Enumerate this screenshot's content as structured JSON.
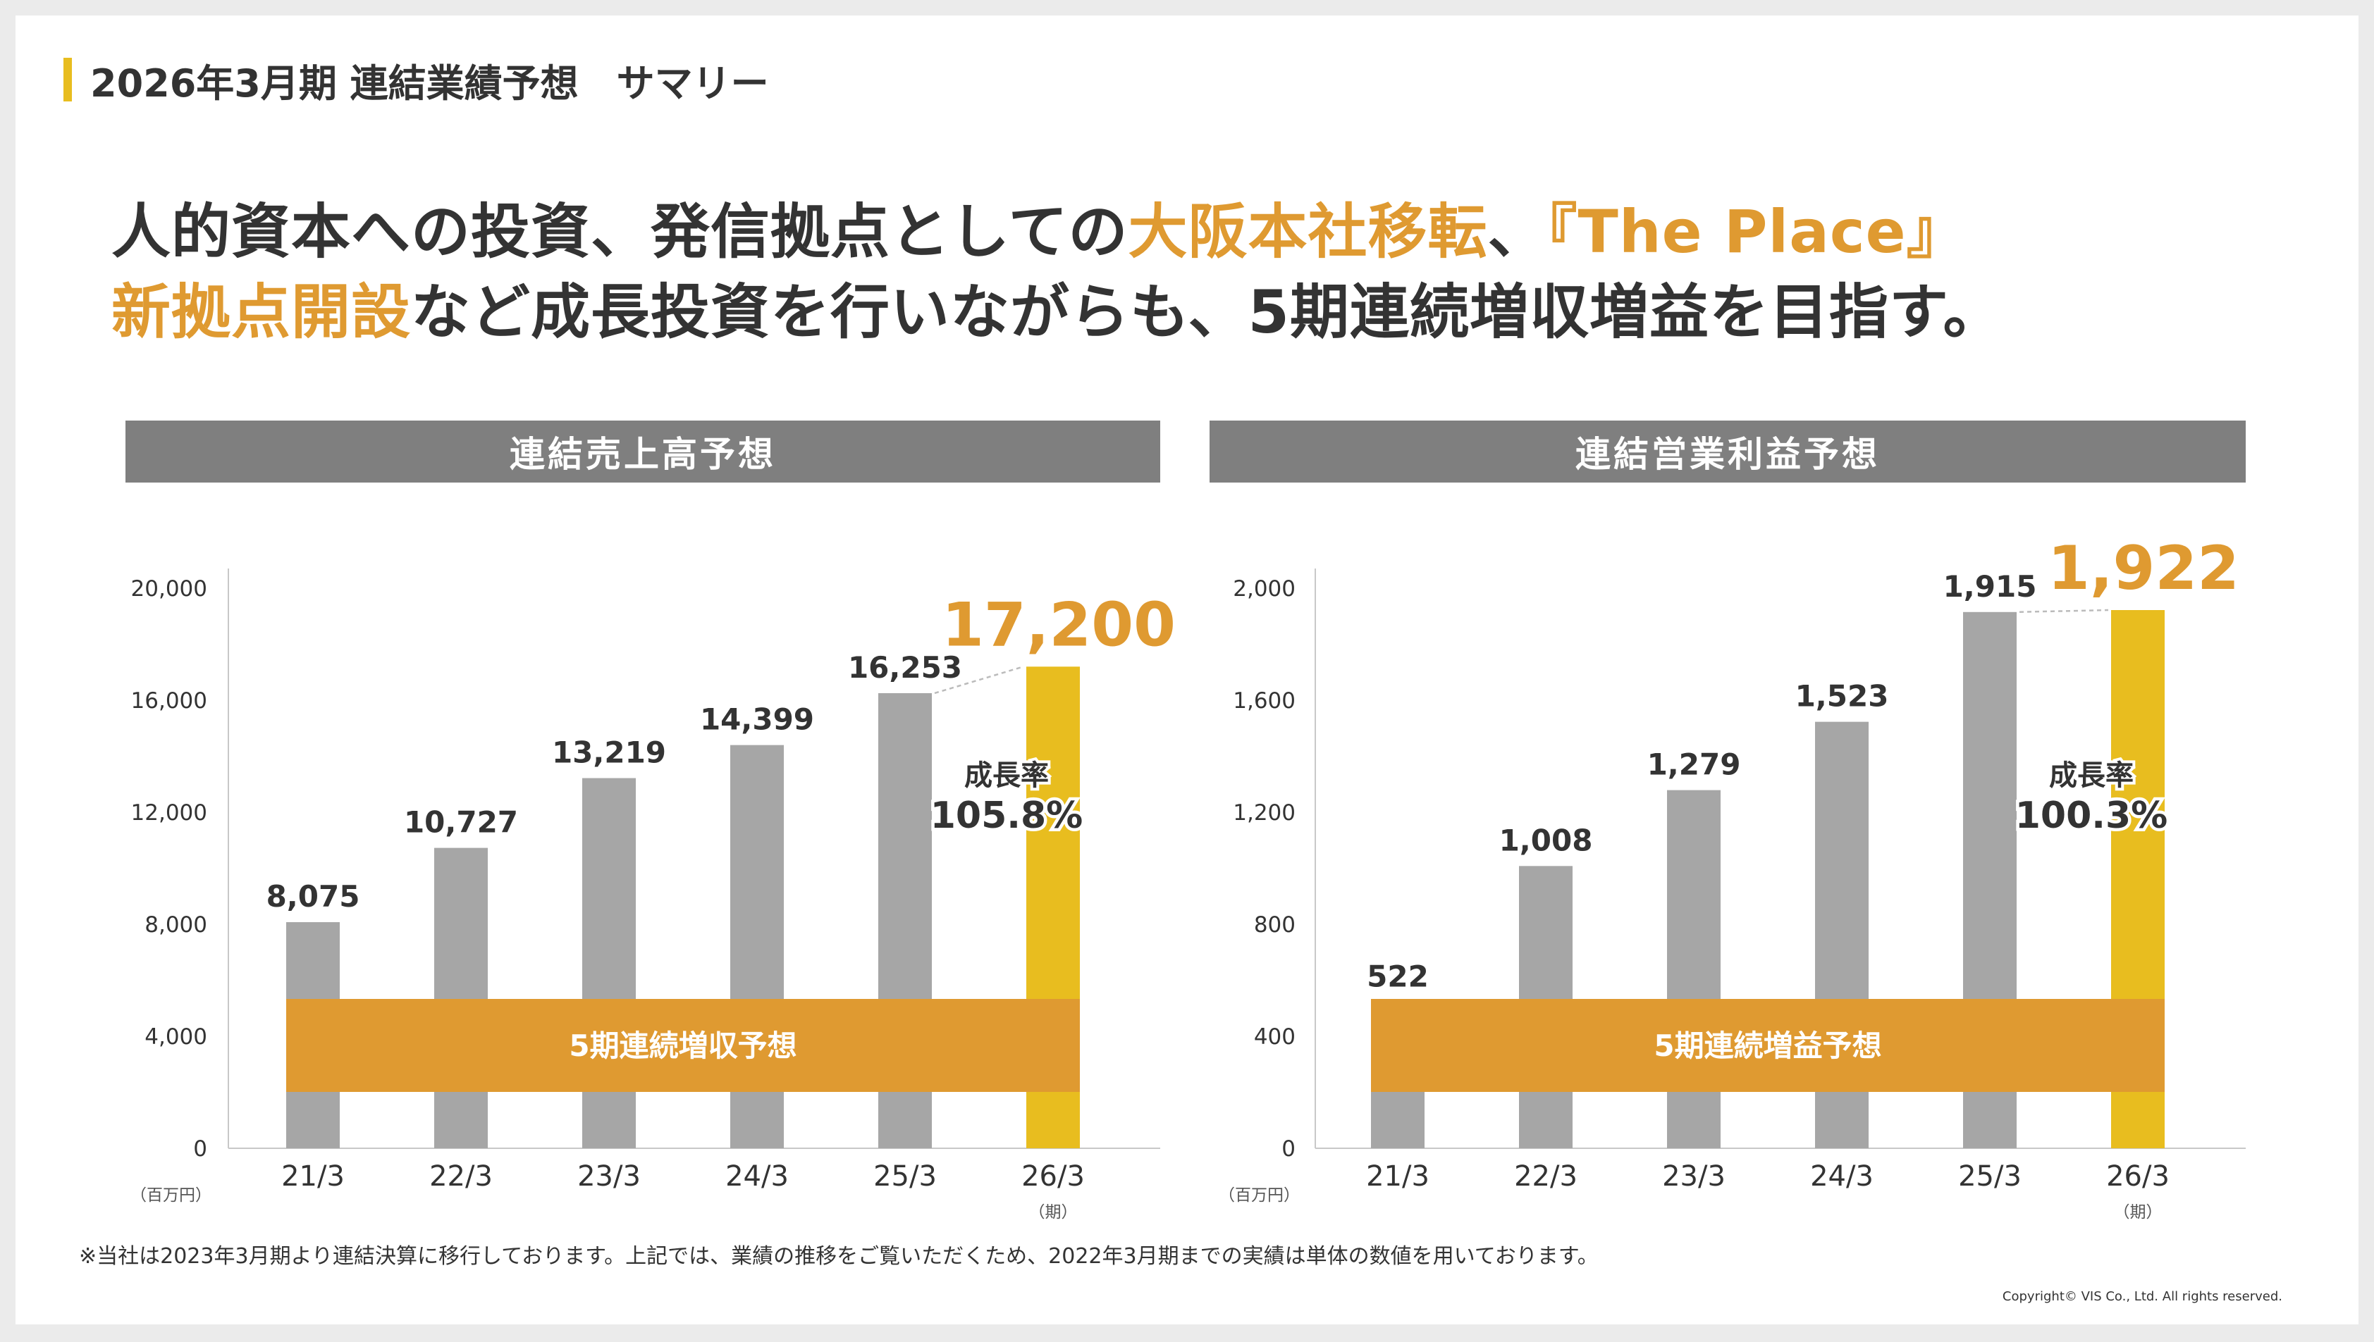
{
  "header": {
    "section_title": "2026年3月期 連結業績予想　サマリー",
    "headline_line1": [
      {
        "text": "人的資本への投資、発信拠点としての",
        "highlight": false
      },
      {
        "text": "大阪本社移転",
        "highlight": true
      },
      {
        "text": "、",
        "highlight": false
      },
      {
        "text": "『The Place』",
        "highlight": true
      }
    ],
    "headline_line2": [
      {
        "text": "新拠点開設",
        "highlight": true
      },
      {
        "text": "など成長投資を行いながらも、5期連続増収増益を目指す。",
        "highlight": false
      }
    ]
  },
  "colors": {
    "actual_bar": "#a6a6a6",
    "forecast_bar": "#e8bd1f",
    "band": "#df9a31",
    "forecast_label": "#df9a31",
    "header_bg": "#7f7f7f",
    "accent_bar": "#e8bd1f"
  },
  "chart_data": [
    {
      "type": "bar",
      "panel_title": "連結売上高予想",
      "categories": [
        "21/3",
        "22/3",
        "23/3",
        "24/3",
        "25/3",
        "26/3"
      ],
      "values": [
        8075,
        10727,
        13219,
        14399,
        16253,
        17200
      ],
      "value_labels": [
        "8,075",
        "10,727",
        "13,219",
        "14,399",
        "16,253",
        "17,200"
      ],
      "forecast_index": 5,
      "ylim": [
        0,
        20000
      ],
      "yticks": [
        0,
        4000,
        8000,
        12000,
        16000,
        20000
      ],
      "ytick_labels": [
        "0",
        "4,000",
        "8,000",
        "12,000",
        "16,000",
        "20,000"
      ],
      "unit_label": "（百万円）",
      "period_label": "（期）",
      "band_label": "5期連続増収予想",
      "growth_label": "成長率",
      "growth_value": "105.8%"
    },
    {
      "type": "bar",
      "panel_title": "連結営業利益予想",
      "categories": [
        "21/3",
        "22/3",
        "23/3",
        "24/3",
        "25/3",
        "26/3"
      ],
      "values": [
        522,
        1008,
        1279,
        1523,
        1915,
        1922
      ],
      "value_labels": [
        "522",
        "1,008",
        "1,279",
        "1,523",
        "1,915",
        "1,922"
      ],
      "forecast_index": 5,
      "ylim": [
        0,
        2000
      ],
      "yticks": [
        0,
        400,
        800,
        1200,
        1600,
        2000
      ],
      "ytick_labels": [
        "0",
        "400",
        "800",
        "1,200",
        "1,600",
        "2,000"
      ],
      "unit_label": "（百万円）",
      "period_label": "（期）",
      "band_label": "5期連続増益予想",
      "growth_label": "成長率",
      "growth_value": "100.3%"
    }
  ],
  "footnote": "※当社は2023年3月期より連結決算に移行しております。上記では、業績の推移をご覧いただくため、2022年3月期までの実績は単体の数値を用いております。",
  "copyright": "Copyright© VIS Co., Ltd. All rights reserved."
}
